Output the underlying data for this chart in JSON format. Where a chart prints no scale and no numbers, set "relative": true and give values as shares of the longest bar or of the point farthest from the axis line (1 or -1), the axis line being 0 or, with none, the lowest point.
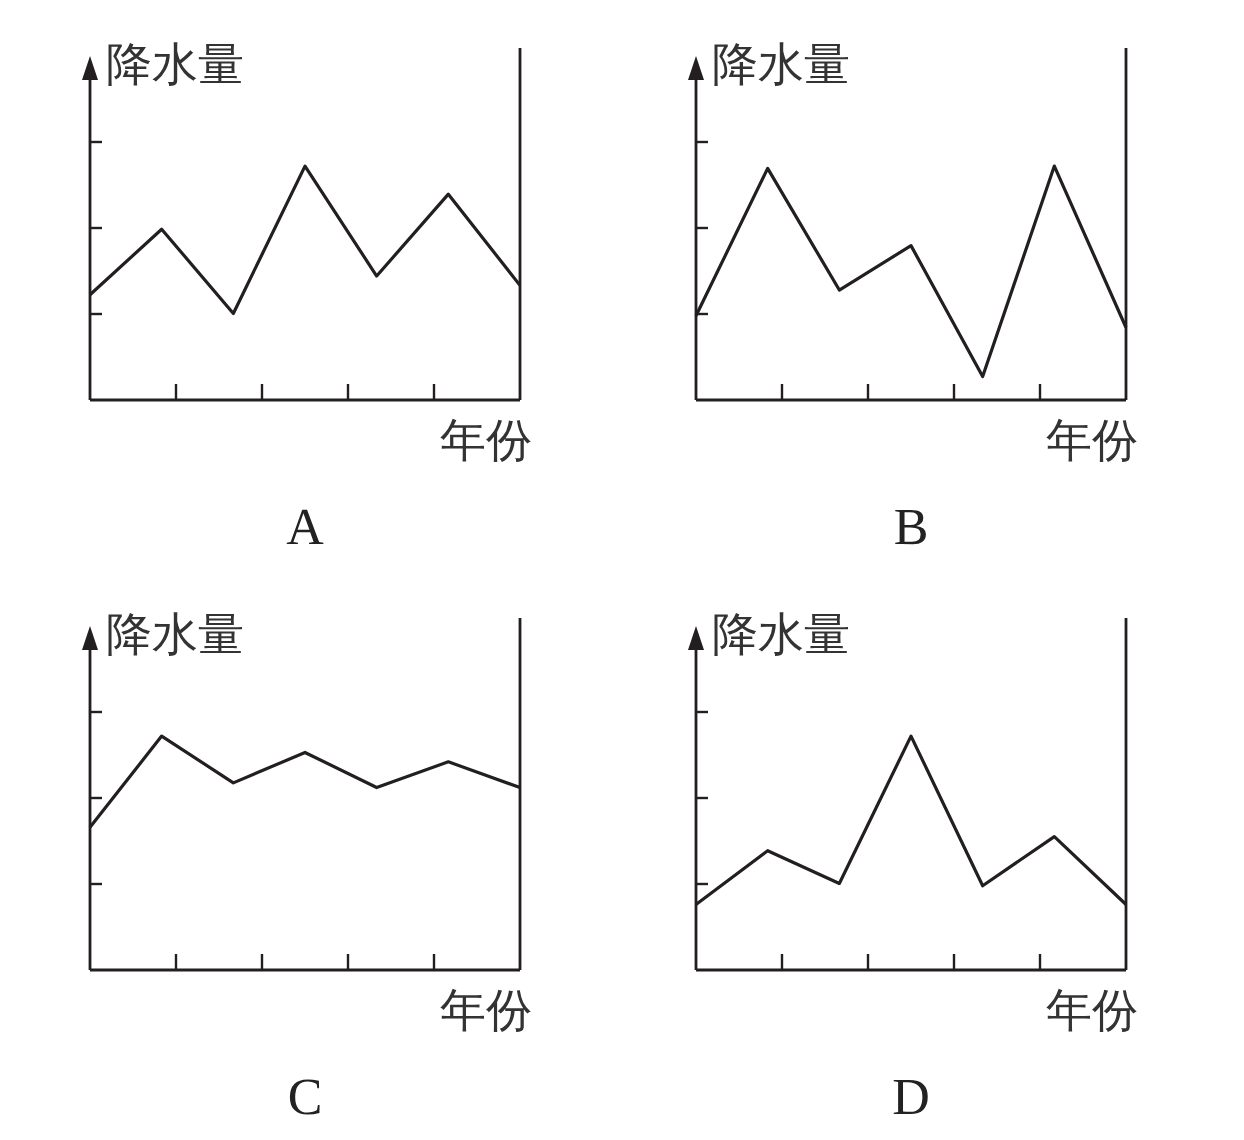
{
  "chart_data": [
    {
      "type": "line",
      "title": "A",
      "xlabel": "年份",
      "ylabel": "降水量",
      "relative": true,
      "color": "#231f20",
      "categories": [
        null,
        null,
        null,
        null,
        null,
        null,
        null
      ],
      "values": [
        0.45,
        0.73,
        0.37,
        1,
        0.53,
        0.88,
        0.49
      ]
    },
    {
      "type": "line",
      "title": "B",
      "xlabel": "年份",
      "ylabel": "降水量",
      "relative": true,
      "color": "#231f20",
      "categories": [
        null,
        null,
        null,
        null,
        null,
        null,
        null
      ],
      "values": [
        0.36,
        0.99,
        0.47,
        0.66,
        0.1,
        1,
        0.31
      ]
    },
    {
      "type": "line",
      "title": "C",
      "xlabel": "年份",
      "ylabel": "降水量",
      "relative": true,
      "color": "#231f20",
      "categories": [
        null,
        null,
        null,
        null,
        null,
        null,
        null
      ],
      "values": [
        0.61,
        1,
        0.8,
        0.93,
        0.78,
        0.89,
        0.78
      ]
    },
    {
      "type": "line",
      "title": "D",
      "xlabel": "年份",
      "ylabel": "降水量",
      "relative": true,
      "color": "#231f20",
      "categories": [
        null,
        null,
        null,
        null,
        null,
        null,
        null
      ],
      "values": [
        0.28,
        0.51,
        0.37,
        1,
        0.36,
        0.57,
        0.28
      ]
    }
  ]
}
